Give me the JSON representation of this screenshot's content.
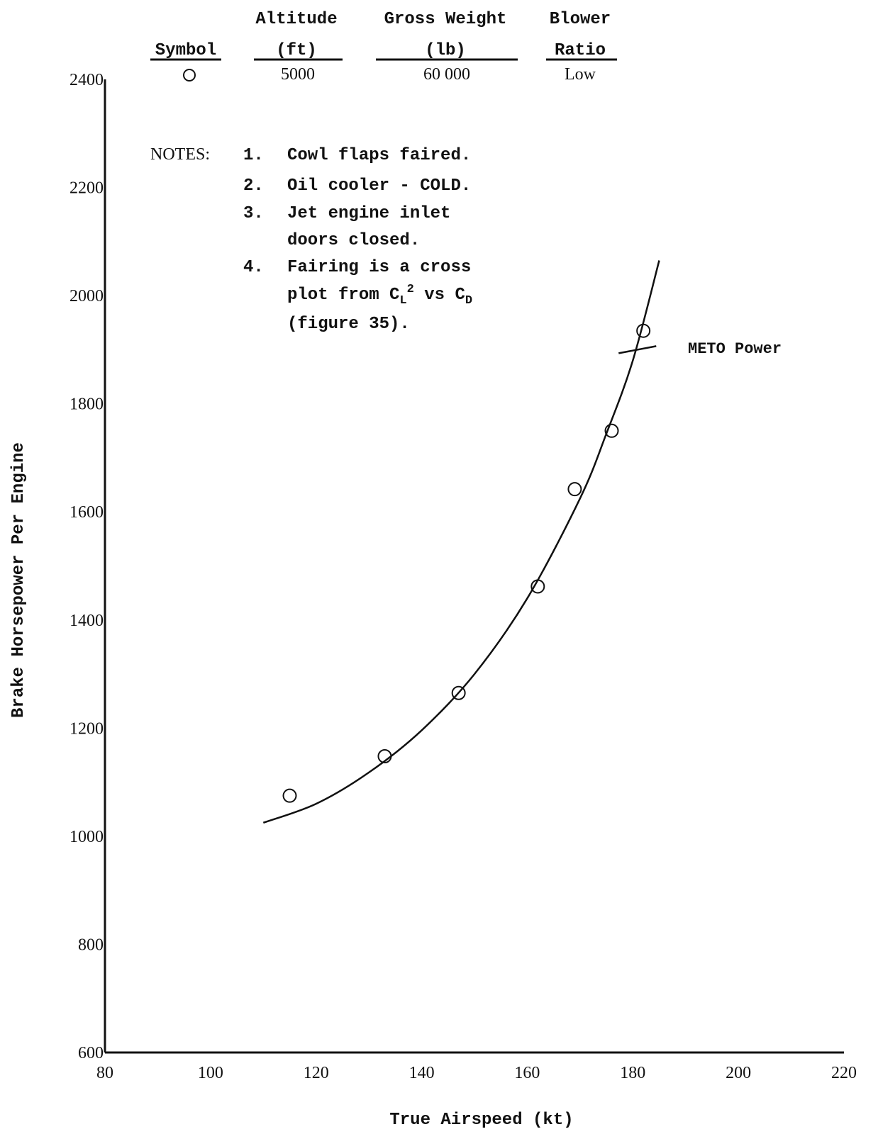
{
  "legend": {
    "headers": {
      "symbol": "Symbol",
      "altitude": [
        "Altitude",
        "(ft)"
      ],
      "gross_weight": [
        "Gross Weight",
        "(lb)"
      ],
      "blower": [
        "Blower",
        "Ratio"
      ]
    },
    "row": {
      "symbol": "○",
      "altitude": "5000",
      "gross_weight": "60 000",
      "blower": "Low"
    }
  },
  "notes": {
    "heading": "NOTES:",
    "items": [
      {
        "num": "1.",
        "lines": [
          "Cowl flaps faired."
        ]
      },
      {
        "num": "2.",
        "lines": [
          "Oil cooler - COLD."
        ]
      },
      {
        "num": "3.",
        "lines": [
          "Jet engine inlet",
          "doors closed."
        ]
      },
      {
        "num": "4.",
        "lines": [
          "Fairing is a cross",
          "plot from C_L^2 vs C_D",
          "(figure 35)."
        ]
      }
    ]
  },
  "annotation": "METO Power",
  "colors": {
    "ink": "#111111"
  },
  "chart_data": {
    "type": "scatter",
    "xlabel": "True Airspeed (kt)",
    "ylabel": "Brake Horsepower Per Engine",
    "xlim": [
      80,
      220
    ],
    "ylim": [
      600,
      2400
    ],
    "xticks": [
      80,
      100,
      120,
      140,
      160,
      180,
      200,
      220
    ],
    "yticks": [
      600,
      800,
      1000,
      1200,
      1400,
      1600,
      1800,
      2000,
      2200,
      2400
    ],
    "grid": false,
    "series": [
      {
        "marker": "open-circle",
        "points": [
          [
            115,
            1075
          ],
          [
            133,
            1148
          ],
          [
            147,
            1265
          ],
          [
            162,
            1462
          ],
          [
            169,
            1642
          ],
          [
            176,
            1750
          ],
          [
            182,
            1935
          ]
        ]
      }
    ],
    "fairing_curve": [
      [
        110,
        1025
      ],
      [
        120,
        1060
      ],
      [
        130,
        1118
      ],
      [
        140,
        1196
      ],
      [
        150,
        1300
      ],
      [
        160,
        1440
      ],
      [
        170,
        1625
      ],
      [
        175,
        1745
      ],
      [
        180,
        1880
      ],
      [
        185,
        2065
      ]
    ],
    "meto_power_mark": {
      "x": 180,
      "y": 1900
    }
  }
}
